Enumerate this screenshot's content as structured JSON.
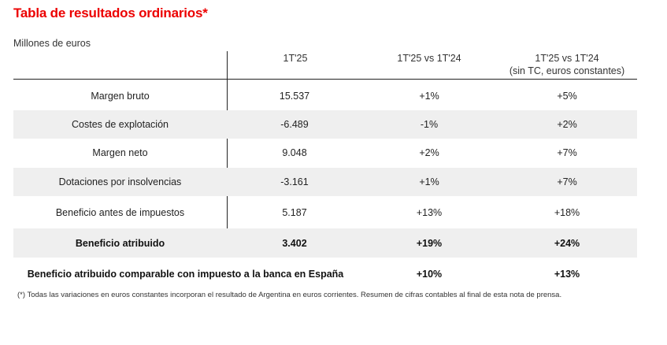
{
  "title": "Tabla de resultados ordinarios*",
  "units": "Millones de euros",
  "headers": {
    "col1": "1T'25",
    "col2": "1T'25 vs 1T'24",
    "col3_line1": "1T'25 vs 1T'24",
    "col3_line2": "(sin TC, euros constantes)"
  },
  "rows": [
    {
      "label": "Margen bruto",
      "v1": "15.537",
      "v2": "+1%",
      "v3": "+5%"
    },
    {
      "label": "Costes de explotación",
      "v1": "-6.489",
      "v2": "-1%",
      "v3": "+2%"
    },
    {
      "label": "Margen neto",
      "v1": "9.048",
      "v2": "+2%",
      "v3": "+7%"
    },
    {
      "label": "Dotaciones por insolvencias",
      "v1": "-3.161",
      "v2": "+1%",
      "v3": "+7%"
    },
    {
      "label": "Beneficio antes de impuestos",
      "v1": "5.187",
      "v2": "+13%",
      "v3": "+18%"
    },
    {
      "label": "Beneficio atribuido",
      "v1": "3.402",
      "v2": "+19%",
      "v3": "+24%"
    }
  ],
  "comparable": {
    "label": "Beneficio atribuido comparable con impuesto a la banca en España",
    "v2": "+10%",
    "v3": "+13%"
  },
  "footnote": "(*) Todas las variaciones en euros constantes incorporan el resultado de Argentina en euros corrientes. Resumen de cifras contables al final de esta nota de prensa.",
  "colors": {
    "title": "#ec0000",
    "shade": "#efefef"
  }
}
